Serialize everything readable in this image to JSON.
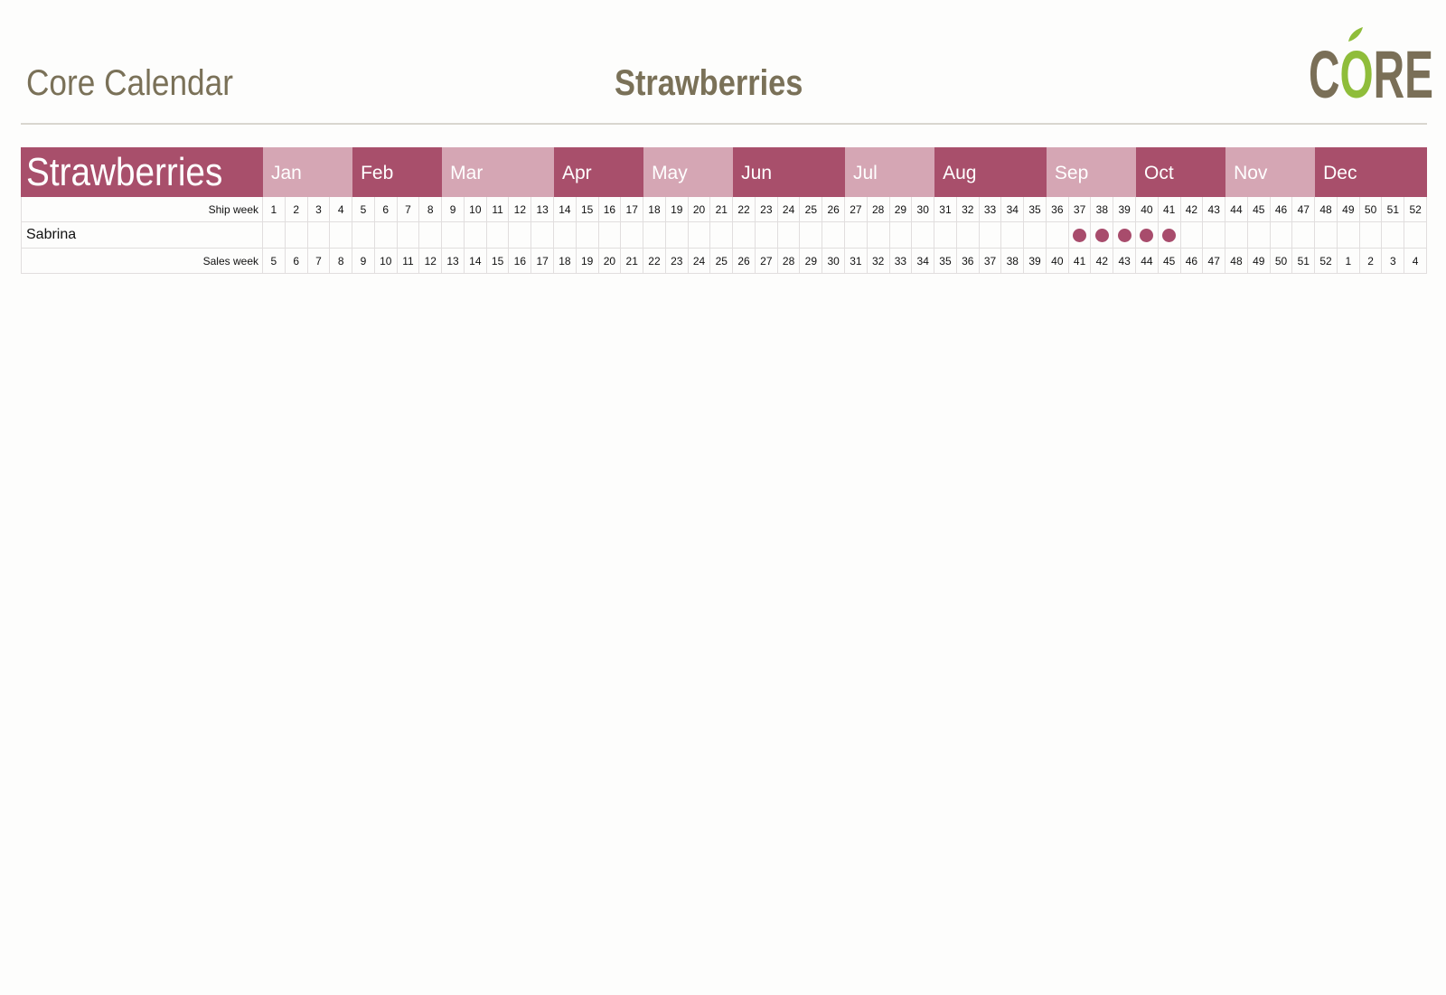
{
  "header": {
    "page_title": "Core Calendar",
    "center_title": "Strawberries",
    "logo_text": "CORE"
  },
  "colors": {
    "dark_month": "#a84f6b",
    "light_month": "#d5a6b4",
    "dot": "#a84c6c",
    "title": "#7a7158",
    "logo_brown": "#7a6f57",
    "logo_green": "#8fbd3a"
  },
  "calendar": {
    "product": "Strawberries",
    "months": [
      {
        "label": "Jan",
        "weeks": 4,
        "shade": "light"
      },
      {
        "label": "Feb",
        "weeks": 4,
        "shade": "dark"
      },
      {
        "label": "Mar",
        "weeks": 5,
        "shade": "light"
      },
      {
        "label": "Apr",
        "weeks": 4,
        "shade": "dark"
      },
      {
        "label": "May",
        "weeks": 4,
        "shade": "light"
      },
      {
        "label": "Jun",
        "weeks": 5,
        "shade": "dark"
      },
      {
        "label": "Jul",
        "weeks": 4,
        "shade": "light"
      },
      {
        "label": "Aug",
        "weeks": 5,
        "shade": "dark"
      },
      {
        "label": "Sep",
        "weeks": 4,
        "shade": "light"
      },
      {
        "label": "Oct",
        "weeks": 4,
        "shade": "dark"
      },
      {
        "label": "Nov",
        "weeks": 4,
        "shade": "light"
      },
      {
        "label": "Dec",
        "weeks": 5,
        "shade": "dark"
      }
    ],
    "ship_week_label": "Ship week",
    "ship_weeks": [
      1,
      2,
      3,
      4,
      5,
      6,
      7,
      8,
      9,
      10,
      11,
      12,
      13,
      14,
      15,
      16,
      17,
      18,
      19,
      20,
      21,
      22,
      23,
      24,
      25,
      26,
      27,
      28,
      29,
      30,
      31,
      32,
      33,
      34,
      35,
      36,
      37,
      38,
      39,
      40,
      41,
      42,
      43,
      44,
      45,
      46,
      47,
      48,
      49,
      50,
      51,
      52
    ],
    "varieties": [
      {
        "name": "Sabrina",
        "available_ship_weeks": [
          37,
          38,
          39,
          40,
          41
        ]
      }
    ],
    "sales_week_label": "Sales week",
    "sales_weeks": [
      5,
      6,
      7,
      8,
      9,
      10,
      11,
      12,
      13,
      14,
      15,
      16,
      17,
      18,
      19,
      20,
      21,
      22,
      23,
      24,
      25,
      26,
      27,
      28,
      29,
      30,
      31,
      32,
      33,
      34,
      35,
      36,
      37,
      38,
      39,
      40,
      41,
      42,
      43,
      44,
      45,
      46,
      47,
      48,
      49,
      50,
      51,
      52,
      1,
      2,
      3,
      4
    ]
  }
}
